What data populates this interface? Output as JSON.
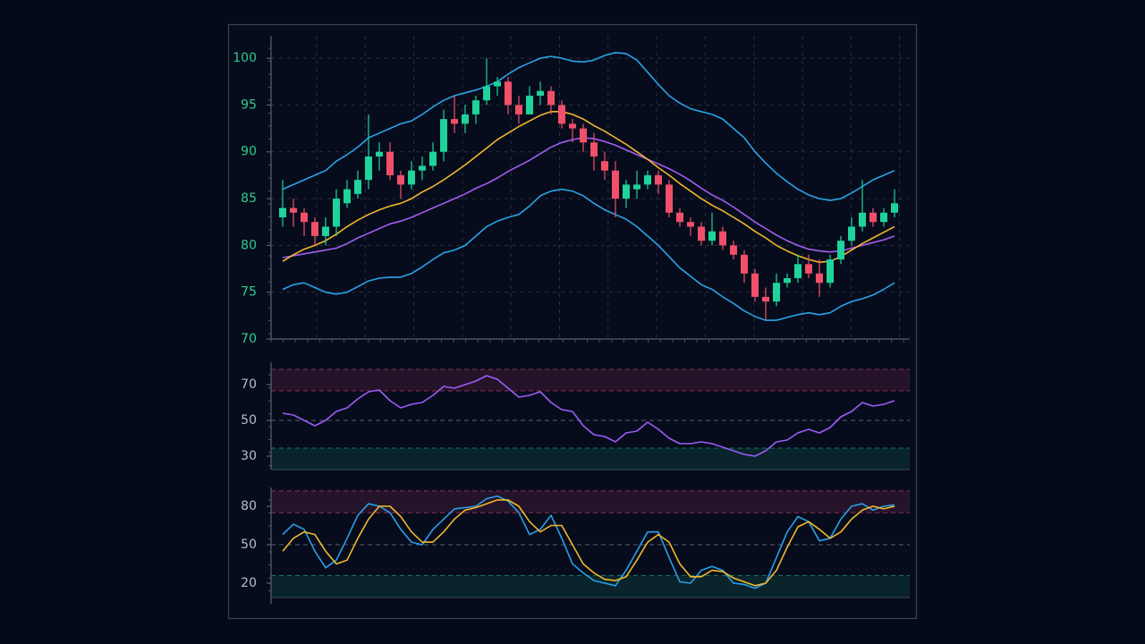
{
  "chart_data": [
    {
      "type": "candlestick",
      "ylim": [
        70,
        102.4
      ],
      "yticks": [
        70,
        75,
        80,
        85,
        90,
        95,
        100
      ],
      "grid": true,
      "tick_color": "#2ecc8f",
      "up_color": "#1fd39a",
      "down_color": "#f0506a",
      "open": [
        83,
        84,
        83.5,
        82.5,
        81,
        82,
        84.5,
        85.5,
        87,
        89.5,
        90,
        87.5,
        86.5,
        88,
        88.5,
        90,
        93.5,
        93,
        94,
        95.5,
        97,
        97.5,
        95,
        94,
        96,
        96.5,
        95,
        93,
        92.5,
        91,
        89,
        88,
        85,
        86,
        86.5,
        87.5,
        86.5,
        83.5,
        82.5,
        82,
        80.5,
        81.5,
        80,
        79,
        77,
        74.5,
        74,
        76,
        76.5,
        78,
        77,
        76,
        78.5,
        80.5,
        82,
        83.5,
        82.5,
        83.5
      ],
      "high": [
        87,
        85,
        84,
        83,
        83,
        86,
        87,
        88,
        94,
        91,
        91,
        88,
        89,
        89.5,
        91,
        94.5,
        96,
        95,
        96,
        100,
        98,
        98,
        96,
        97,
        97.5,
        97,
        95.5,
        93.5,
        93,
        92,
        90,
        89,
        87,
        88,
        88,
        88,
        87,
        84,
        83,
        82.5,
        83.5,
        82,
        80.5,
        79.5,
        77.5,
        75.5,
        77,
        77,
        79,
        79,
        78.5,
        79,
        81,
        83,
        87,
        84,
        84,
        86
      ],
      "low": [
        82,
        82,
        81,
        80,
        80,
        81,
        84,
        85,
        86,
        88,
        87,
        85,
        86,
        87,
        88,
        89,
        92,
        92,
        93,
        95,
        96,
        94,
        93,
        94,
        95,
        94,
        92.5,
        91,
        90,
        88,
        87,
        83,
        84,
        85,
        86,
        85.5,
        83,
        82,
        81,
        80,
        80,
        79.5,
        78.5,
        76,
        74,
        72,
        73.5,
        75.5,
        76,
        76.5,
        74.5,
        75.5,
        78,
        80,
        81.5,
        82,
        82,
        83
      ],
      "close": [
        84,
        83.5,
        82.5,
        81,
        82,
        85,
        86,
        87,
        89.5,
        90,
        87.5,
        86.5,
        88,
        88.5,
        90,
        93.5,
        93,
        94,
        95.5,
        97,
        97.5,
        95,
        94,
        96,
        96.5,
        95,
        93,
        92.5,
        91,
        89.5,
        88,
        85,
        86.5,
        86.5,
        87.5,
        86.5,
        83.5,
        82.5,
        82,
        80.5,
        81.5,
        80,
        79,
        77,
        74.5,
        74,
        76,
        76.5,
        78,
        77,
        76,
        78.5,
        80.5,
        82,
        83.5,
        82.5,
        83.5,
        84.5
      ],
      "series": [
        {
          "color": "#2aa3e6",
          "values": [
            86,
            86.5,
            87,
            87.5,
            88,
            89,
            89.7,
            90.5,
            91.5,
            92,
            92.5,
            93,
            93.3,
            94,
            94.8,
            95.5,
            96,
            96.3,
            96.6,
            97,
            97.5,
            98.3,
            99,
            99.5,
            100,
            100.2,
            100,
            99.7,
            99.6,
            99.8,
            100.3,
            100.6,
            100.5,
            99.8,
            98.5,
            97.2,
            96,
            95.2,
            94.6,
            94.3,
            94,
            93.5,
            92.5,
            91.5,
            90,
            88.8,
            87.7,
            86.8,
            86,
            85.4,
            85,
            84.8,
            85,
            85.6,
            86.3,
            87,
            87.5,
            88
          ]
        },
        {
          "color": "#2aa3e6",
          "values": [
            75.3,
            75.8,
            76,
            75.5,
            75,
            74.8,
            75,
            75.6,
            76.2,
            76.5,
            76.6,
            76.6,
            77,
            77.7,
            78.5,
            79.2,
            79.5,
            80,
            81,
            82,
            82.6,
            83,
            83.3,
            84.2,
            85.3,
            85.8,
            86,
            85.8,
            85.3,
            84.5,
            83.8,
            83.3,
            82.8,
            82,
            81,
            80,
            78.8,
            77.6,
            76.7,
            75.8,
            75.3,
            74.5,
            73.8,
            73,
            72.4,
            72,
            72,
            72.3,
            72.6,
            72.8,
            72.6,
            72.8,
            73.5,
            74,
            74.3,
            74.7,
            75.3,
            76
          ]
        },
        {
          "color": "#a45cf0",
          "values": [
            78.7,
            78.9,
            79.1,
            79.3,
            79.5,
            79.7,
            80.2,
            80.8,
            81.3,
            81.8,
            82.3,
            82.6,
            83,
            83.5,
            84,
            84.5,
            85,
            85.5,
            86.1,
            86.6,
            87.2,
            87.9,
            88.5,
            89.1,
            89.8,
            90.5,
            91,
            91.3,
            91.5,
            91.4,
            91.1,
            90.7,
            90.2,
            89.7,
            89.2,
            88.7,
            88.2,
            87.6,
            86.9,
            86.1,
            85.4,
            84.8,
            84.1,
            83.3,
            82.5,
            81.8,
            81.1,
            80.5,
            80,
            79.6,
            79.4,
            79.3,
            79.4,
            79.7,
            80,
            80.3,
            80.6,
            81
          ]
        },
        {
          "color": "#f2b62c",
          "values": [
            78.3,
            79,
            79.6,
            80,
            80.5,
            81.2,
            82,
            82.7,
            83.3,
            83.8,
            84.2,
            84.5,
            85,
            85.7,
            86.3,
            87,
            87.8,
            88.6,
            89.5,
            90.4,
            91.3,
            92,
            92.7,
            93.3,
            93.9,
            94.3,
            94.3,
            94,
            93.5,
            92.8,
            92.2,
            91.5,
            90.8,
            90,
            89.2,
            88.3,
            87.5,
            86.6,
            85.8,
            85,
            84.3,
            83.7,
            83,
            82.3,
            81.5,
            80.8,
            80,
            79.4,
            78.9,
            78.5,
            78.2,
            78.3,
            78.8,
            79.5,
            80.2,
            80.8,
            81.4,
            82
          ]
        }
      ]
    },
    {
      "type": "line",
      "ylim": [
        22.5,
        82.5
      ],
      "yticks": [
        30,
        50,
        70
      ],
      "tick_color": "#b8bcc8",
      "bands": [
        {
          "range": [
            66.5,
            78.5
          ],
          "color": "#e0457a"
        },
        {
          "range": [
            22.5,
            34.5
          ],
          "color": "#1fb98a"
        }
      ],
      "dashed": [
        50
      ],
      "series": [
        {
          "color": "#9b5cf5",
          "values": [
            54,
            53,
            50,
            47,
            50,
            55,
            57,
            62,
            66,
            67,
            61,
            57,
            59,
            60,
            64,
            69,
            68,
            70,
            72,
            75,
            73,
            68,
            63,
            64,
            66,
            60,
            56,
            55,
            47,
            42,
            41,
            38,
            43,
            44,
            49,
            45,
            40,
            37,
            37,
            38,
            37,
            35,
            33,
            31,
            30,
            33,
            38,
            39,
            43,
            45,
            43,
            46,
            52,
            55,
            60,
            58,
            59,
            61
          ]
        }
      ]
    },
    {
      "type": "line",
      "ylim": [
        8.8,
        94.7
      ],
      "yticks": [
        20,
        50,
        80
      ],
      "tick_color": "#b8bcc8",
      "bands": [
        {
          "range": [
            75,
            92
          ],
          "color": "#e0457a"
        },
        {
          "range": [
            8.8,
            26
          ],
          "color": "#1fb98a"
        }
      ],
      "dashed": [
        50
      ],
      "series": [
        {
          "color": "#2a9fe8",
          "values": [
            58,
            66,
            62,
            45,
            32,
            38,
            55,
            73,
            82,
            80,
            75,
            62,
            52,
            50,
            62,
            70,
            78,
            79,
            80,
            86,
            88,
            84,
            75,
            58,
            62,
            73,
            55,
            35,
            28,
            22,
            20,
            18,
            30,
            45,
            60,
            60,
            40,
            21,
            20,
            30,
            33,
            30,
            20,
            19,
            16,
            20,
            40,
            60,
            72,
            68,
            53,
            55,
            70,
            80,
            82,
            77,
            80,
            81
          ]
        },
        {
          "color": "#f0b82a",
          "values": [
            45,
            55,
            60,
            58,
            45,
            35,
            38,
            55,
            70,
            80,
            80,
            72,
            60,
            52,
            52,
            60,
            70,
            77,
            79,
            82,
            85,
            85,
            80,
            68,
            60,
            65,
            65,
            50,
            35,
            28,
            23,
            22,
            25,
            38,
            52,
            58,
            52,
            35,
            25,
            25,
            30,
            29,
            24,
            21,
            18,
            20,
            30,
            48,
            64,
            68,
            62,
            55,
            60,
            70,
            77,
            80,
            78,
            80
          ]
        }
      ]
    }
  ]
}
